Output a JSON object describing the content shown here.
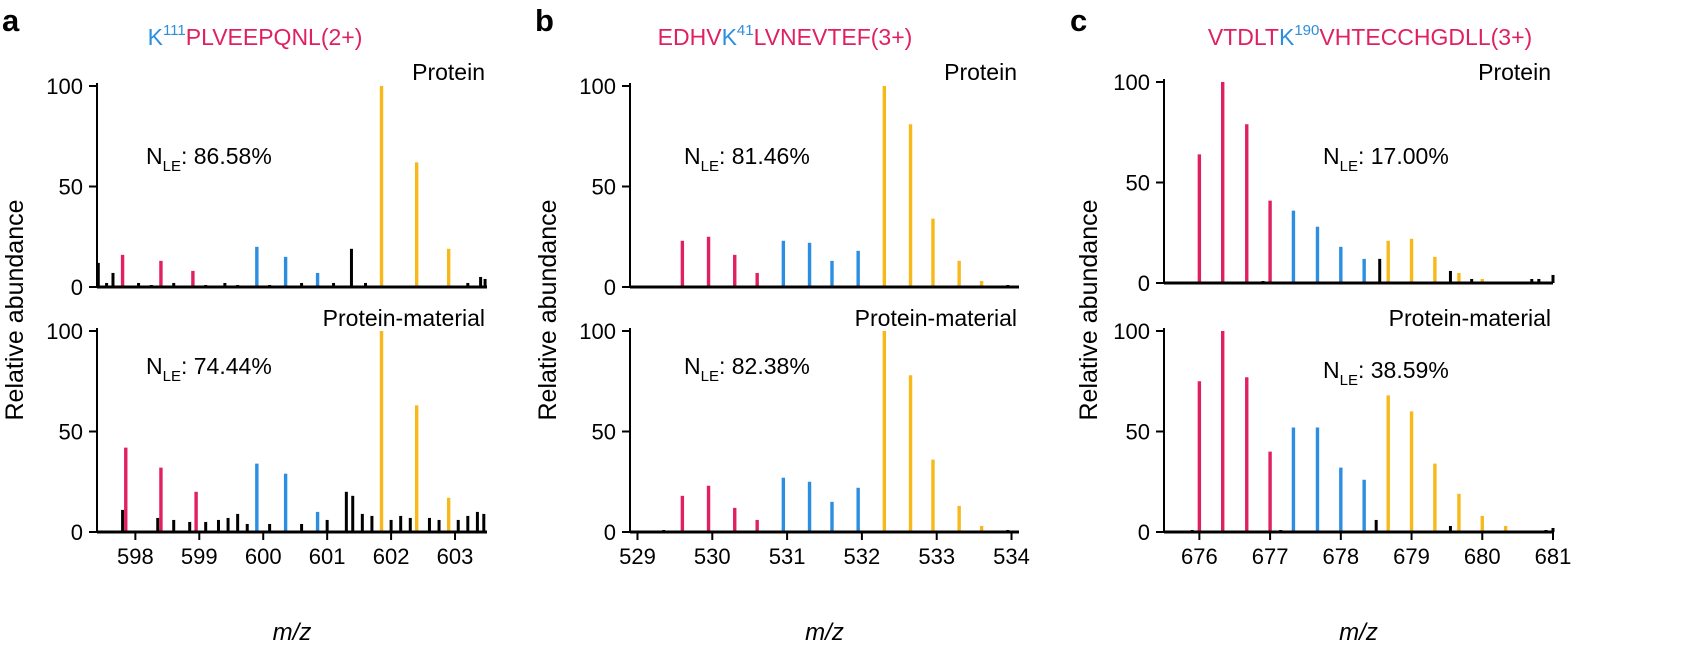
{
  "colors": {
    "magenta": "#e0205f",
    "blue": "#2b8ee0",
    "gold": "#f7b91a",
    "noise": "#000000",
    "axis": "#000000"
  },
  "shared": {
    "xlabel": "m/z",
    "ylabel": "Relative abundance",
    "subtitle_sup_text": "LE",
    "top_panel_label": "Protein",
    "bottom_panel_label": "Protein-material"
  },
  "chart_data": [
    {
      "panel_letter": "a",
      "title": {
        "prefix": "",
        "k_residue": "K",
        "k_position": "111",
        "suffix": "PLVEEPQNL(2+)"
      },
      "type": "bar",
      "xlim": [
        597.4,
        603.5
      ],
      "xticks": [
        598,
        599,
        600,
        601,
        602,
        603
      ],
      "ylim": [
        0,
        100
      ],
      "yticks": [
        0,
        50,
        100
      ],
      "subplots": [
        {
          "label": "Protein",
          "nle_value": "86.58%",
          "peaks": [
            {
              "x": 597.8,
              "y": 16,
              "group": "magenta"
            },
            {
              "x": 598.4,
              "y": 13,
              "group": "magenta"
            },
            {
              "x": 598.9,
              "y": 8,
              "group": "magenta"
            },
            {
              "x": 599.9,
              "y": 20,
              "group": "blue"
            },
            {
              "x": 600.35,
              "y": 15,
              "group": "blue"
            },
            {
              "x": 600.85,
              "y": 7,
              "group": "blue"
            },
            {
              "x": 601.85,
              "y": 100,
              "group": "gold"
            },
            {
              "x": 602.4,
              "y": 62,
              "group": "gold"
            },
            {
              "x": 602.9,
              "y": 19,
              "group": "gold"
            }
          ],
          "noise": [
            {
              "x": 597.42,
              "y": 12
            },
            {
              "x": 597.55,
              "y": 2
            },
            {
              "x": 597.65,
              "y": 7
            },
            {
              "x": 598.05,
              "y": 2
            },
            {
              "x": 598.25,
              "y": 1
            },
            {
              "x": 598.6,
              "y": 2
            },
            {
              "x": 599.1,
              "y": 1
            },
            {
              "x": 599.4,
              "y": 2
            },
            {
              "x": 599.6,
              "y": 1
            },
            {
              "x": 600.1,
              "y": 1
            },
            {
              "x": 600.6,
              "y": 2
            },
            {
              "x": 601.1,
              "y": 2
            },
            {
              "x": 601.38,
              "y": 19
            },
            {
              "x": 601.6,
              "y": 2
            },
            {
              "x": 603.2,
              "y": 2
            },
            {
              "x": 603.4,
              "y": 5
            },
            {
              "x": 603.47,
              "y": 4
            }
          ]
        },
        {
          "label": "Protein-material",
          "nle_value": "74.44%",
          "peaks": [
            {
              "x": 597.85,
              "y": 42,
              "group": "magenta"
            },
            {
              "x": 598.4,
              "y": 32,
              "group": "magenta"
            },
            {
              "x": 598.95,
              "y": 20,
              "group": "magenta"
            },
            {
              "x": 599.9,
              "y": 34,
              "group": "blue"
            },
            {
              "x": 600.35,
              "y": 29,
              "group": "blue"
            },
            {
              "x": 600.85,
              "y": 10,
              "group": "blue"
            },
            {
              "x": 601.85,
              "y": 100,
              "group": "gold"
            },
            {
              "x": 602.4,
              "y": 63,
              "group": "gold"
            },
            {
              "x": 602.9,
              "y": 17,
              "group": "gold"
            }
          ],
          "noise": [
            {
              "x": 597.8,
              "y": 11
            },
            {
              "x": 598.35,
              "y": 7
            },
            {
              "x": 598.6,
              "y": 6
            },
            {
              "x": 598.85,
              "y": 5
            },
            {
              "x": 599.1,
              "y": 5
            },
            {
              "x": 599.3,
              "y": 6
            },
            {
              "x": 599.45,
              "y": 7
            },
            {
              "x": 599.6,
              "y": 9
            },
            {
              "x": 599.75,
              "y": 4
            },
            {
              "x": 600.1,
              "y": 4
            },
            {
              "x": 600.6,
              "y": 4
            },
            {
              "x": 601.0,
              "y": 6
            },
            {
              "x": 601.3,
              "y": 20
            },
            {
              "x": 601.4,
              "y": 18
            },
            {
              "x": 601.55,
              "y": 9
            },
            {
              "x": 601.7,
              "y": 8
            },
            {
              "x": 602.0,
              "y": 6
            },
            {
              "x": 602.15,
              "y": 8
            },
            {
              "x": 602.3,
              "y": 7
            },
            {
              "x": 602.6,
              "y": 7
            },
            {
              "x": 602.75,
              "y": 6
            },
            {
              "x": 603.05,
              "y": 6
            },
            {
              "x": 603.2,
              "y": 8
            },
            {
              "x": 603.35,
              "y": 10
            },
            {
              "x": 603.45,
              "y": 9
            }
          ]
        }
      ]
    },
    {
      "panel_letter": "b",
      "title": {
        "prefix": "EDHV",
        "k_residue": "K",
        "k_position": "41",
        "suffix": "LVNEVTEF(3+)"
      },
      "type": "bar",
      "xlim": [
        528.9,
        534.1
      ],
      "xticks": [
        529,
        530,
        531,
        532,
        533,
        534
      ],
      "ylim": [
        0,
        100
      ],
      "yticks": [
        0,
        50,
        100
      ],
      "subplots": [
        {
          "label": "Protein",
          "nle_value": "81.46%",
          "peaks": [
            {
              "x": 529.6,
              "y": 23,
              "group": "magenta"
            },
            {
              "x": 529.95,
              "y": 25,
              "group": "magenta"
            },
            {
              "x": 530.3,
              "y": 16,
              "group": "magenta"
            },
            {
              "x": 530.6,
              "y": 7,
              "group": "magenta"
            },
            {
              "x": 530.95,
              "y": 23,
              "group": "blue"
            },
            {
              "x": 531.3,
              "y": 22,
              "group": "blue"
            },
            {
              "x": 531.6,
              "y": 13,
              "group": "blue"
            },
            {
              "x": 531.95,
              "y": 18,
              "group": "blue"
            },
            {
              "x": 532.3,
              "y": 100,
              "group": "gold"
            },
            {
              "x": 532.65,
              "y": 81,
              "group": "gold"
            },
            {
              "x": 532.95,
              "y": 34,
              "group": "gold"
            },
            {
              "x": 533.3,
              "y": 13,
              "group": "gold"
            },
            {
              "x": 533.6,
              "y": 3,
              "group": "gold"
            }
          ],
          "noise": [
            {
              "x": 533.95,
              "y": 1
            }
          ]
        },
        {
          "label": "Protein-material",
          "nle_value": "82.38%",
          "peaks": [
            {
              "x": 529.6,
              "y": 18,
              "group": "magenta"
            },
            {
              "x": 529.95,
              "y": 23,
              "group": "magenta"
            },
            {
              "x": 530.3,
              "y": 12,
              "group": "magenta"
            },
            {
              "x": 530.6,
              "y": 6,
              "group": "magenta"
            },
            {
              "x": 530.95,
              "y": 27,
              "group": "blue"
            },
            {
              "x": 531.3,
              "y": 25,
              "group": "blue"
            },
            {
              "x": 531.6,
              "y": 15,
              "group": "blue"
            },
            {
              "x": 531.95,
              "y": 22,
              "group": "blue"
            },
            {
              "x": 532.3,
              "y": 100,
              "group": "gold"
            },
            {
              "x": 532.65,
              "y": 78,
              "group": "gold"
            },
            {
              "x": 532.95,
              "y": 36,
              "group": "gold"
            },
            {
              "x": 533.3,
              "y": 13,
              "group": "gold"
            },
            {
              "x": 533.6,
              "y": 3,
              "group": "gold"
            }
          ],
          "noise": [
            {
              "x": 529.35,
              "y": 1
            },
            {
              "x": 533.95,
              "y": 1
            }
          ]
        }
      ]
    },
    {
      "panel_letter": "c",
      "title": {
        "prefix": "VTDLT",
        "k_residue": "K",
        "k_position": "190",
        "suffix": "VHTECCHGDLL(3+)"
      },
      "type": "bar",
      "xlim": [
        675.5,
        681.0
      ],
      "xticks": [
        676,
        677,
        678,
        679,
        680,
        681
      ],
      "ylim": [
        0,
        100
      ],
      "yticks": [
        0,
        50,
        100
      ],
      "subplots": [
        {
          "label": "Protein",
          "nle_value": "17.00%",
          "peaks": [
            {
              "x": 676.0,
              "y": 64,
              "group": "magenta"
            },
            {
              "x": 676.33,
              "y": 100,
              "group": "magenta"
            },
            {
              "x": 676.67,
              "y": 79,
              "group": "magenta"
            },
            {
              "x": 677.0,
              "y": 41,
              "group": "magenta"
            },
            {
              "x": 677.33,
              "y": 36,
              "group": "blue"
            },
            {
              "x": 677.67,
              "y": 28,
              "group": "blue"
            },
            {
              "x": 678.0,
              "y": 18,
              "group": "blue"
            },
            {
              "x": 678.33,
              "y": 12,
              "group": "blue"
            },
            {
              "x": 678.67,
              "y": 21,
              "group": "gold"
            },
            {
              "x": 679.0,
              "y": 22,
              "group": "gold"
            },
            {
              "x": 679.33,
              "y": 13,
              "group": "gold"
            },
            {
              "x": 679.67,
              "y": 5,
              "group": "gold"
            },
            {
              "x": 680.0,
              "y": 2,
              "group": "gold"
            }
          ],
          "noise": [
            {
              "x": 676.9,
              "y": 1
            },
            {
              "x": 678.0,
              "y": 1
            },
            {
              "x": 678.55,
              "y": 12
            },
            {
              "x": 679.55,
              "y": 6
            },
            {
              "x": 679.85,
              "y": 2
            },
            {
              "x": 680.7,
              "y": 2
            },
            {
              "x": 680.8,
              "y": 2
            },
            {
              "x": 681.0,
              "y": 4
            }
          ]
        },
        {
          "label": "Protein-material",
          "nle_value": "38.59%",
          "peaks": [
            {
              "x": 676.0,
              "y": 75,
              "group": "magenta"
            },
            {
              "x": 676.33,
              "y": 100,
              "group": "magenta"
            },
            {
              "x": 676.67,
              "y": 77,
              "group": "magenta"
            },
            {
              "x": 677.0,
              "y": 40,
              "group": "magenta"
            },
            {
              "x": 677.33,
              "y": 52,
              "group": "blue"
            },
            {
              "x": 677.67,
              "y": 52,
              "group": "blue"
            },
            {
              "x": 678.0,
              "y": 32,
              "group": "blue"
            },
            {
              "x": 678.33,
              "y": 26,
              "group": "blue"
            },
            {
              "x": 678.67,
              "y": 68,
              "group": "gold"
            },
            {
              "x": 679.0,
              "y": 60,
              "group": "gold"
            },
            {
              "x": 679.33,
              "y": 34,
              "group": "gold"
            },
            {
              "x": 679.67,
              "y": 19,
              "group": "gold"
            },
            {
              "x": 680.0,
              "y": 8,
              "group": "gold"
            },
            {
              "x": 680.33,
              "y": 3,
              "group": "gold"
            }
          ],
          "noise": [
            {
              "x": 675.9,
              "y": 1
            },
            {
              "x": 677.15,
              "y": 1
            },
            {
              "x": 678.5,
              "y": 6
            },
            {
              "x": 679.55,
              "y": 3
            },
            {
              "x": 680.9,
              "y": 1
            },
            {
              "x": 681.0,
              "y": 2
            }
          ]
        }
      ]
    }
  ]
}
